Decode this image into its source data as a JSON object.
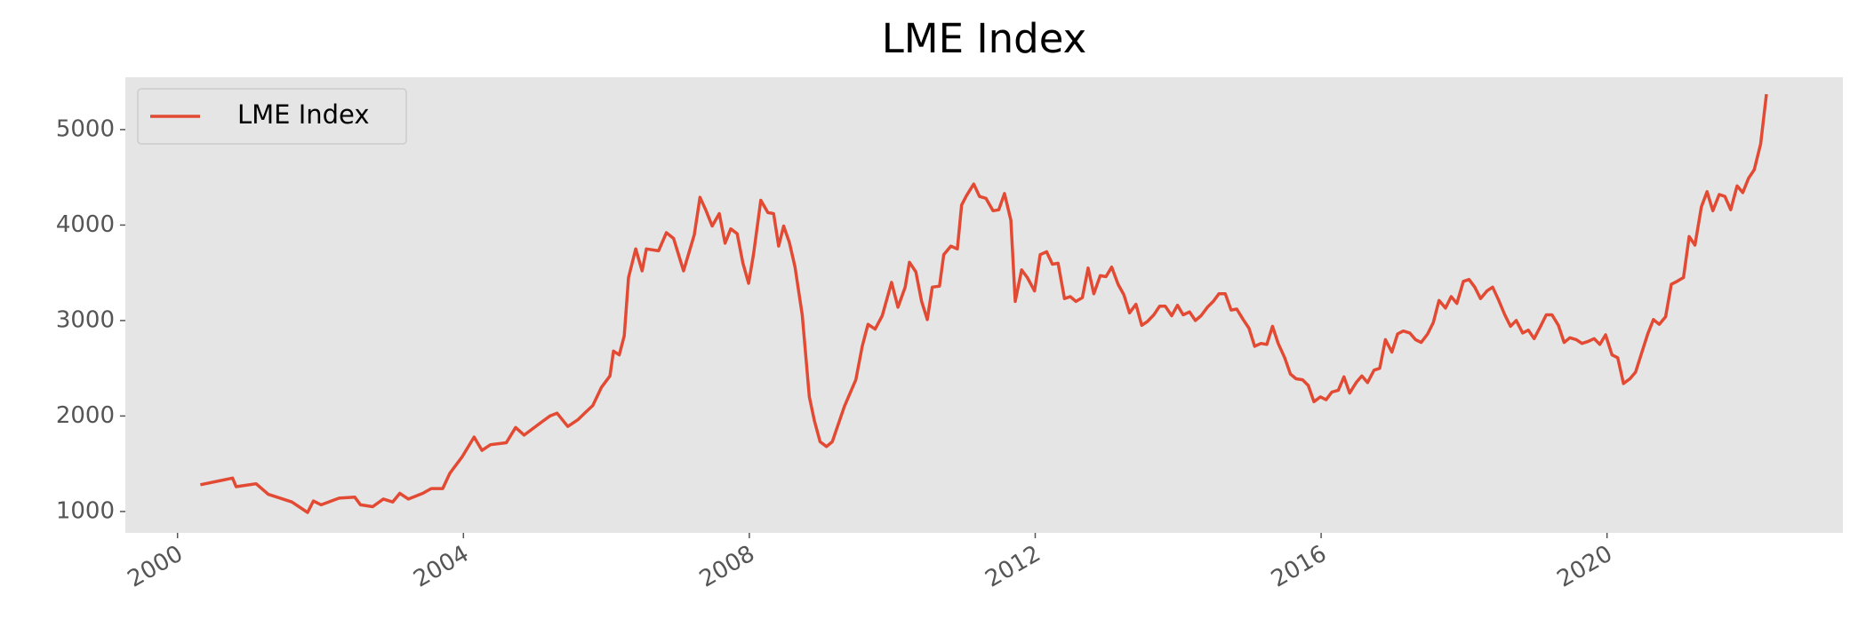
{
  "chart_data": {
    "type": "line",
    "title": "LME Index",
    "xlim": [
      1999.27,
      2023.3
    ],
    "xticks": [
      2000,
      2004,
      2008,
      2012,
      2016,
      2020
    ],
    "ylim": [
      776,
      5548
    ],
    "yticks": [
      1000,
      2000,
      3000,
      4000,
      5000
    ],
    "grid": false,
    "legend": "upper left",
    "x": [
      2000.32,
      2000.77,
      2000.82,
      2001.1,
      2001.27,
      2001.6,
      2001.82,
      2001.9,
      2002.01,
      2002.26,
      2002.48,
      2002.56,
      2002.73,
      2002.88,
      2003.01,
      2003.11,
      2003.23,
      2003.43,
      2003.55,
      2003.71,
      2003.81,
      2003.98,
      2004.15,
      2004.26,
      2004.38,
      2004.6,
      2004.73,
      2004.85,
      2005.1,
      2005.21,
      2005.31,
      2005.46,
      2005.6,
      2005.71,
      2005.81,
      2005.93,
      2006.05,
      2006.1,
      2006.18,
      2006.25,
      2006.31,
      2006.41,
      2006.5,
      2006.56,
      2006.73,
      2006.84,
      2006.94,
      2007.08,
      2007.23,
      2007.31,
      2007.39,
      2007.48,
      2007.58,
      2007.66,
      2007.74,
      2007.83,
      2007.91,
      2007.99,
      2008.06,
      2008.16,
      2008.26,
      2008.34,
      2008.41,
      2008.48,
      2008.56,
      2008.64,
      2008.74,
      2008.84,
      2008.91,
      2008.99,
      2009.08,
      2009.16,
      2009.33,
      2009.49,
      2009.58,
      2009.66,
      2009.76,
      2009.86,
      2009.99,
      2010.08,
      2010.18,
      2010.24,
      2010.33,
      2010.41,
      2010.49,
      2010.56,
      2010.66,
      2010.72,
      2010.82,
      2010.91,
      2010.97,
      2011.04,
      2011.14,
      2011.22,
      2011.31,
      2011.41,
      2011.49,
      2011.57,
      2011.66,
      2011.72,
      2011.81,
      2011.89,
      2011.99,
      2012.07,
      2012.16,
      2012.24,
      2012.32,
      2012.41,
      2012.49,
      2012.57,
      2012.66,
      2012.74,
      2012.82,
      2012.91,
      2012.99,
      2013.07,
      2013.16,
      2013.24,
      2013.32,
      2013.41,
      2013.49,
      2013.57,
      2013.66,
      2013.74,
      2013.82,
      2013.91,
      2013.99,
      2014.07,
      2014.16,
      2014.24,
      2014.32,
      2014.41,
      2014.49,
      2014.57,
      2014.66,
      2014.74,
      2014.82,
      2014.91,
      2014.99,
      2015.07,
      2015.16,
      2015.24,
      2015.32,
      2015.4,
      2015.49,
      2015.57,
      2015.65,
      2015.74,
      2015.82,
      2015.9,
      2015.99,
      2016.07,
      2016.15,
      2016.24,
      2016.32,
      2016.4,
      2016.49,
      2016.57,
      2016.65,
      2016.74,
      2016.82,
      2016.9,
      2016.99,
      2017.07,
      2017.15,
      2017.24,
      2017.32,
      2017.4,
      2017.49,
      2017.57,
      2017.65,
      2017.74,
      2017.82,
      2017.9,
      2017.99,
      2018.07,
      2018.15,
      2018.23,
      2018.32,
      2018.4,
      2018.48,
      2018.57,
      2018.65,
      2018.73,
      2018.82,
      2018.9,
      2018.98,
      2019.07,
      2019.15,
      2019.23,
      2019.32,
      2019.4,
      2019.48,
      2019.57,
      2019.65,
      2019.73,
      2019.82,
      2019.9,
      2019.98,
      2020.07,
      2020.15,
      2020.23,
      2020.32,
      2020.4,
      2020.48,
      2020.57,
      2020.65,
      2020.73,
      2020.82,
      2020.9,
      2020.98,
      2021.07,
      2021.15,
      2021.23,
      2021.32,
      2021.4,
      2021.48,
      2021.57,
      2021.65,
      2021.73,
      2021.82,
      2021.9,
      2021.98,
      2022.06,
      2022.15,
      2022.23
    ],
    "series": [
      {
        "name": "LME Index",
        "color": "#e24a33",
        "values": [
          1280,
          1350,
          1260,
          1290,
          1180,
          1100,
          990,
          1110,
          1070,
          1140,
          1150,
          1070,
          1050,
          1130,
          1100,
          1190,
          1130,
          1190,
          1240,
          1240,
          1400,
          1570,
          1780,
          1640,
          1700,
          1720,
          1880,
          1800,
          1940,
          2000,
          2030,
          1890,
          1960,
          2040,
          2110,
          2300,
          2420,
          2680,
          2640,
          2840,
          3450,
          3750,
          3520,
          3750,
          3730,
          3920,
          3860,
          3520,
          3900,
          4290,
          4160,
          3990,
          4120,
          3810,
          3960,
          3910,
          3600,
          3390,
          3700,
          4260,
          4130,
          4120,
          3780,
          3990,
          3820,
          3560,
          3060,
          2200,
          1950,
          1730,
          1680,
          1730,
          2100,
          2380,
          2730,
          2960,
          2910,
          3050,
          3400,
          3140,
          3350,
          3610,
          3510,
          3200,
          3010,
          3350,
          3360,
          3690,
          3780,
          3750,
          4210,
          4310,
          4430,
          4300,
          4280,
          4150,
          4160,
          4330,
          4050,
          3200,
          3530,
          3450,
          3310,
          3690,
          3720,
          3590,
          3600,
          3230,
          3250,
          3200,
          3240,
          3550,
          3280,
          3470,
          3460,
          3560,
          3380,
          3270,
          3080,
          3170,
          2950,
          2990,
          3060,
          3150,
          3150,
          3050,
          3160,
          3060,
          3090,
          3000,
          3050,
          3140,
          3200,
          3280,
          3280,
          3110,
          3120,
          3010,
          2920,
          2730,
          2760,
          2750,
          2940,
          2760,
          2610,
          2440,
          2390,
          2380,
          2320,
          2150,
          2200,
          2170,
          2250,
          2270,
          2410,
          2240,
          2350,
          2420,
          2350,
          2480,
          2500,
          2800,
          2670,
          2860,
          2890,
          2870,
          2800,
          2770,
          2860,
          2980,
          3210,
          3130,
          3250,
          3180,
          3410,
          3430,
          3350,
          3230,
          3310,
          3350,
          3220,
          3060,
          2940,
          3000,
          2870,
          2900,
          2810,
          2940,
          3060,
          3060,
          2950,
          2770,
          2820,
          2800,
          2760,
          2780,
          2810,
          2750,
          2850,
          2640,
          2610,
          2340,
          2390,
          2460,
          2650,
          2860,
          3010,
          2960,
          3040,
          3380,
          3410,
          3450,
          3880,
          3790,
          4190,
          4350,
          4150,
          4320,
          4300,
          4160,
          4410,
          4340,
          4490,
          4580,
          4850,
          5370
        ]
      }
    ]
  }
}
